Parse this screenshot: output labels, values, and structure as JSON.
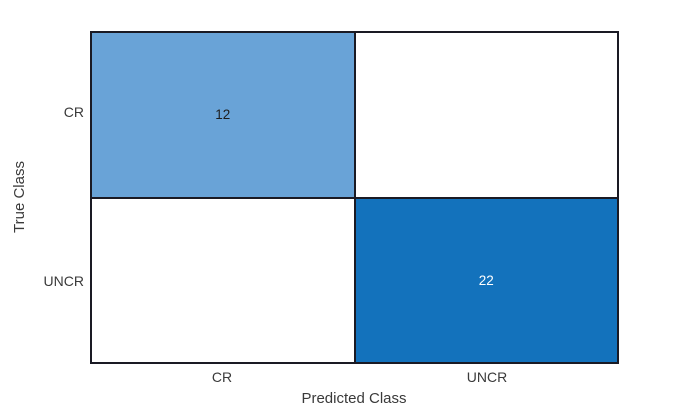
{
  "chart_data": {
    "type": "heatmap",
    "subtype": "confusion-matrix",
    "title": "",
    "xlabel": "Predicted Class",
    "ylabel": "True Class",
    "classes": [
      "CR",
      "UNCR"
    ],
    "x_ticks": [
      "CR",
      "UNCR"
    ],
    "y_ticks": [
      "CR",
      "UNCR"
    ],
    "matrix_rows_true_by_predicted": [
      [
        12,
        0
      ],
      [
        0,
        22
      ]
    ],
    "grid_color": "#1a1a24",
    "diagonal_base_color": "#0072bd",
    "cells": [
      {
        "true_class": "CR",
        "predicted_class": "CR",
        "value": "12",
        "bg": "#69a3d7",
        "text_color": "#1d1d1d"
      },
      {
        "true_class": "CR",
        "predicted_class": "UNCR",
        "value": "",
        "bg": "#ffffff",
        "text_color": "#1d1d1d"
      },
      {
        "true_class": "UNCR",
        "predicted_class": "CR",
        "value": "",
        "bg": "#ffffff",
        "text_color": "#1d1d1d"
      },
      {
        "true_class": "UNCR",
        "predicted_class": "UNCR",
        "value": "22",
        "bg": "#1372bc",
        "text_color": "#ffffff"
      }
    ]
  }
}
